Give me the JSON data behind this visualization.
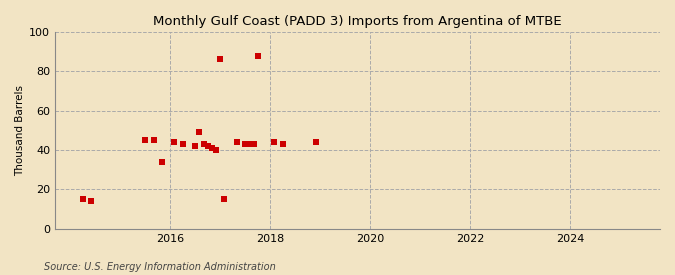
{
  "title": "Monthly Gulf Coast (PADD 3) Imports from Argentina of MTBE",
  "ylabel": "Thousand Barrels",
  "source": "Source: U.S. Energy Information Administration",
  "background_color": "#f2e4c4",
  "plot_bg_color": "#f2e4c4",
  "marker_color": "#cc0000",
  "marker_size": 4,
  "ylim": [
    0,
    100
  ],
  "yticks": [
    0,
    20,
    40,
    60,
    80,
    100
  ],
  "xlim_start": 2013.7,
  "xlim_end": 2025.8,
  "xticks": [
    2016,
    2018,
    2020,
    2022,
    2024
  ],
  "data_points": [
    [
      2014.25,
      15
    ],
    [
      2014.42,
      14
    ],
    [
      2015.5,
      45
    ],
    [
      2015.67,
      45
    ],
    [
      2015.83,
      34
    ],
    [
      2016.08,
      44
    ],
    [
      2016.25,
      43
    ],
    [
      2016.5,
      42
    ],
    [
      2016.58,
      49
    ],
    [
      2016.67,
      43
    ],
    [
      2016.75,
      42
    ],
    [
      2016.83,
      41
    ],
    [
      2016.92,
      40
    ],
    [
      2017.0,
      86
    ],
    [
      2017.08,
      15
    ],
    [
      2017.33,
      44
    ],
    [
      2017.5,
      43
    ],
    [
      2017.58,
      43
    ],
    [
      2017.67,
      43
    ],
    [
      2017.75,
      88
    ],
    [
      2018.08,
      44
    ],
    [
      2018.25,
      43
    ],
    [
      2018.92,
      44
    ]
  ]
}
